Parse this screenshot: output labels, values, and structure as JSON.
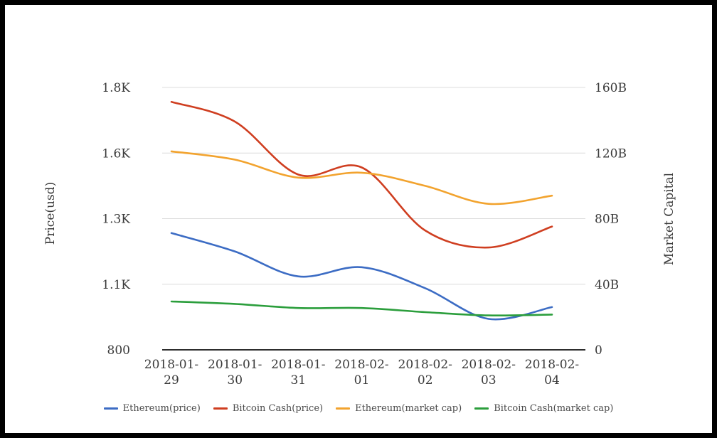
{
  "chart_data": {
    "type": "line",
    "smooth": true,
    "grid": true,
    "legend_position": "bottom",
    "categories": [
      "2018-01-29",
      "2018-01-30",
      "2018-01-31",
      "2018-02-01",
      "2018-02-02",
      "2018-02-03",
      "2018-02-04"
    ],
    "left_axis": {
      "label": "Price(usd)",
      "min": 800,
      "max": 1800,
      "ticks": [
        {
          "value": 800,
          "label": "800"
        },
        {
          "value": 1050,
          "label": "1.1K"
        },
        {
          "value": 1300,
          "label": "1.3K"
        },
        {
          "value": 1550,
          "label": "1.6K"
        },
        {
          "value": 1800,
          "label": "1.8K"
        }
      ]
    },
    "right_axis": {
      "label": "Market Capital",
      "min": 0,
      "max": 160,
      "unit": "B",
      "ticks": [
        {
          "value": 0,
          "label": "0"
        },
        {
          "value": 40,
          "label": "40B"
        },
        {
          "value": 80,
          "label": "80B"
        },
        {
          "value": 120,
          "label": "120B"
        },
        {
          "value": 160,
          "label": "160B"
        }
      ]
    },
    "series": [
      {
        "name": "Ethereum(price)",
        "axis": "left",
        "color": "#3c6cc4",
        "values": [
          1245,
          1175,
          1080,
          1115,
          1035,
          918,
          963
        ]
      },
      {
        "name": "Bitcoin Cash(price)",
        "axis": "left",
        "color": "#cf3e20",
        "values": [
          1745,
          1670,
          1468,
          1495,
          1255,
          1190,
          1270
        ]
      },
      {
        "name": "Ethereum(market cap)",
        "axis": "right",
        "color": "#f2a32e",
        "values": [
          121,
          116,
          105,
          108,
          100,
          89,
          94
        ]
      },
      {
        "name": "Bitcoin Cash(market cap)",
        "axis": "right",
        "color": "#2b9e3c",
        "values": [
          29.5,
          28,
          25.5,
          25.5,
          23,
          21,
          21.5
        ]
      }
    ]
  }
}
